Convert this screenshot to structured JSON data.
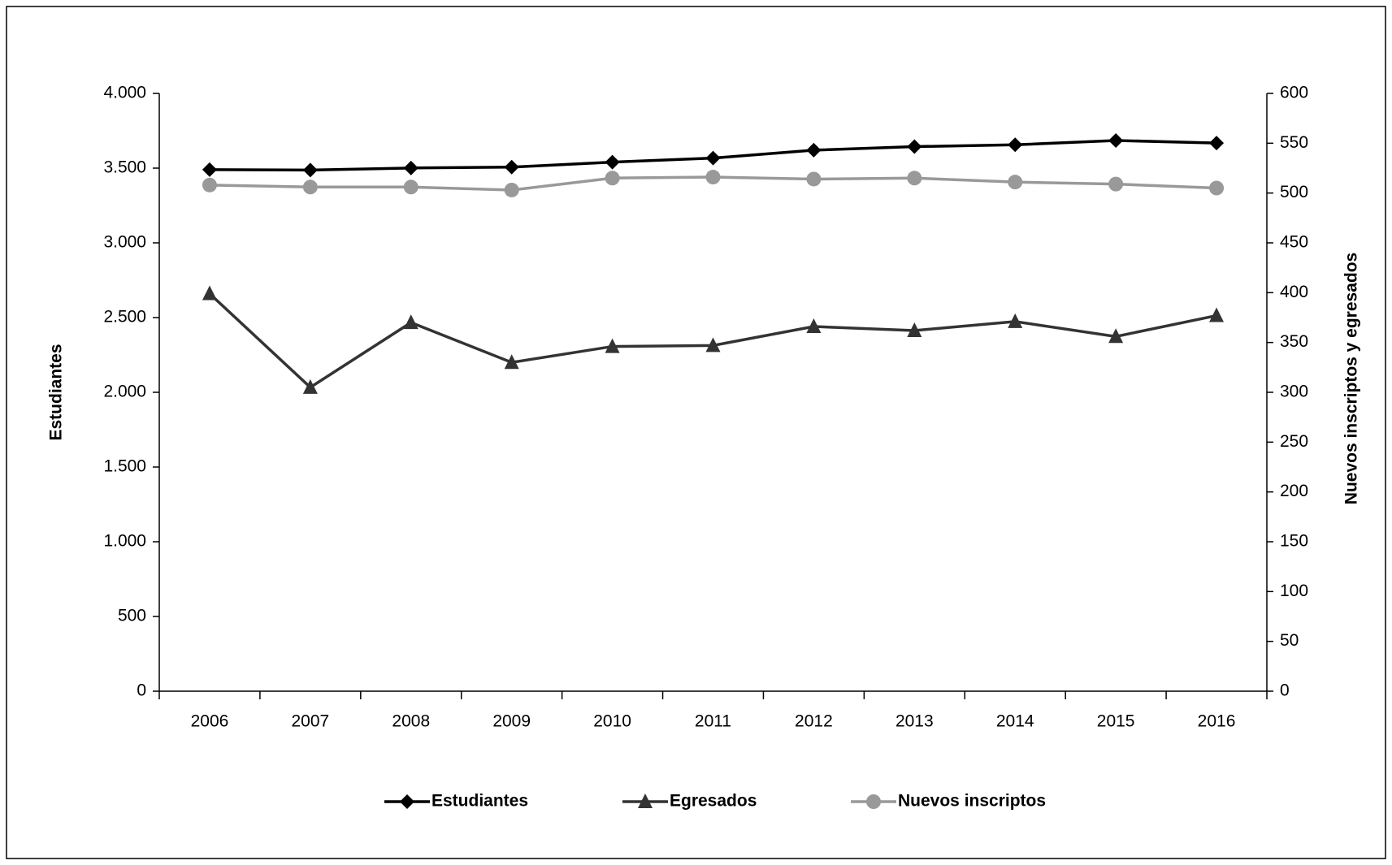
{
  "chart_data": {
    "type": "line",
    "categories": [
      "2006",
      "2007",
      "2008",
      "2009",
      "2010",
      "2011",
      "2012",
      "2013",
      "2014",
      "2015",
      "2016"
    ],
    "y_label": "Estudiantes",
    "y2_label": "Nuevos inscriptos y egresados",
    "ylim": [
      0,
      4000
    ],
    "yticks": [
      0,
      500,
      {
        "value": 1000,
        "label": "1.000"
      },
      {
        "value": 1500,
        "label": "1.500"
      },
      {
        "value": 2000,
        "label": "2.000"
      },
      {
        "value": 2500,
        "label": "2.500"
      },
      {
        "value": 3000,
        "label": "3.000"
      },
      {
        "value": 3500,
        "label": "3.500"
      },
      {
        "value": 4000,
        "label": "4.000"
      }
    ],
    "y2lim": [
      0,
      600
    ],
    "y2ticks": [
      0,
      50,
      100,
      150,
      200,
      250,
      300,
      350,
      400,
      450,
      500,
      550,
      600
    ],
    "legend": "bottom",
    "series": [
      {
        "name": "Estudiantes",
        "color": "#000000",
        "marker": "diamond",
        "values": [
          3490,
          3487,
          3501,
          3507,
          3540,
          3567,
          3620,
          3644,
          3656,
          3685,
          3668
        ]
      },
      {
        "name": "Egresados",
        "color": "#333333",
        "marker": "triangle",
        "axis": "y2",
        "values": [
          399,
          305,
          370,
          330,
          346,
          347,
          366,
          362,
          371,
          356,
          377
        ]
      },
      {
        "name": "Nuevos inscriptos",
        "color": "#999999",
        "marker": "circle",
        "axis": "y2",
        "values": [
          508,
          506,
          506,
          503,
          515,
          516,
          514,
          515,
          511,
          509,
          505
        ]
      }
    ]
  }
}
